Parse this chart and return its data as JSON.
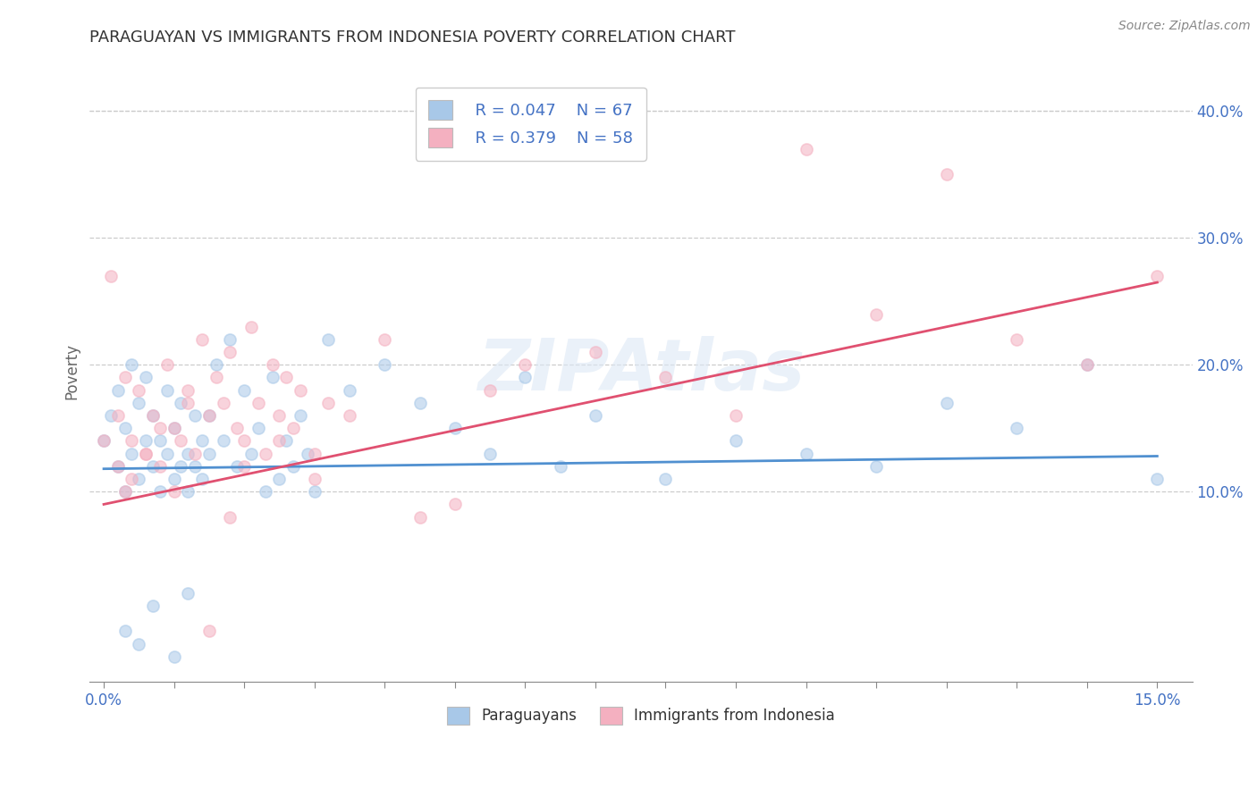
{
  "title": "PARAGUAYAN VS IMMIGRANTS FROM INDONESIA POVERTY CORRELATION CHART",
  "source": "Source: ZipAtlas.com",
  "xlabel_paraguayans": "Paraguayans",
  "xlabel_indonesia": "Immigrants from Indonesia",
  "ylabel": "Poverty",
  "xlim": [
    -0.002,
    0.155
  ],
  "ylim": [
    -0.05,
    0.44
  ],
  "xticks_minor": [
    0.0,
    0.01,
    0.02,
    0.03,
    0.04,
    0.05,
    0.06,
    0.07,
    0.08,
    0.09,
    0.1,
    0.11,
    0.12,
    0.13,
    0.14,
    0.15
  ],
  "xticks_labeled": [
    0.0,
    0.15
  ],
  "xticklabels_labeled": [
    "0.0%",
    "15.0%"
  ],
  "yticks_right": [
    0.1,
    0.2,
    0.3,
    0.4
  ],
  "yticklabels_right": [
    "10.0%",
    "20.0%",
    "30.0%",
    "40.0%"
  ],
  "r_blue": "R = 0.047",
  "n_blue": "N = 67",
  "r_pink": "R = 0.379",
  "n_pink": "N = 58",
  "color_blue": "#a8c8e8",
  "color_pink": "#f4b0c0",
  "color_blue_line": "#5090d0",
  "color_pink_line": "#e05070",
  "color_text": "#4472c4",
  "color_axis": "#888888",
  "watermark": "ZIPAtlas",
  "background_color": "#ffffff",
  "grid_color": "#cccccc",
  "blue_scatter_x": [
    0.0,
    0.001,
    0.002,
    0.002,
    0.003,
    0.003,
    0.004,
    0.004,
    0.005,
    0.005,
    0.006,
    0.006,
    0.007,
    0.007,
    0.008,
    0.008,
    0.009,
    0.009,
    0.01,
    0.01,
    0.011,
    0.011,
    0.012,
    0.012,
    0.013,
    0.013,
    0.014,
    0.014,
    0.015,
    0.015,
    0.016,
    0.017,
    0.018,
    0.019,
    0.02,
    0.021,
    0.022,
    0.023,
    0.024,
    0.025,
    0.026,
    0.027,
    0.028,
    0.029,
    0.03,
    0.032,
    0.035,
    0.04,
    0.045,
    0.05,
    0.055,
    0.06,
    0.065,
    0.07,
    0.08,
    0.09,
    0.1,
    0.11,
    0.12,
    0.13,
    0.14,
    0.15,
    0.003,
    0.005,
    0.007,
    0.01,
    0.012
  ],
  "blue_scatter_y": [
    0.14,
    0.16,
    0.12,
    0.18,
    0.1,
    0.15,
    0.13,
    0.2,
    0.11,
    0.17,
    0.14,
    0.19,
    0.12,
    0.16,
    0.1,
    0.14,
    0.13,
    0.18,
    0.11,
    0.15,
    0.12,
    0.17,
    0.1,
    0.13,
    0.16,
    0.12,
    0.14,
    0.11,
    0.13,
    0.16,
    0.2,
    0.14,
    0.22,
    0.12,
    0.18,
    0.13,
    0.15,
    0.1,
    0.19,
    0.11,
    0.14,
    0.12,
    0.16,
    0.13,
    0.1,
    0.22,
    0.18,
    0.2,
    0.17,
    0.15,
    0.13,
    0.19,
    0.12,
    0.16,
    0.11,
    0.14,
    0.13,
    0.12,
    0.17,
    0.15,
    0.2,
    0.11,
    -0.01,
    -0.02,
    0.01,
    -0.03,
    0.02
  ],
  "pink_scatter_x": [
    0.0,
    0.001,
    0.002,
    0.002,
    0.003,
    0.003,
    0.004,
    0.005,
    0.006,
    0.007,
    0.008,
    0.009,
    0.01,
    0.011,
    0.012,
    0.013,
    0.014,
    0.015,
    0.016,
    0.017,
    0.018,
    0.019,
    0.02,
    0.021,
    0.022,
    0.023,
    0.024,
    0.025,
    0.026,
    0.027,
    0.028,
    0.03,
    0.032,
    0.035,
    0.04,
    0.045,
    0.05,
    0.055,
    0.06,
    0.07,
    0.08,
    0.09,
    0.1,
    0.11,
    0.12,
    0.13,
    0.14,
    0.15,
    0.004,
    0.006,
    0.008,
    0.01,
    0.012,
    0.015,
    0.018,
    0.02,
    0.025,
    0.03
  ],
  "pink_scatter_y": [
    0.14,
    0.27,
    0.12,
    0.16,
    0.1,
    0.19,
    0.14,
    0.18,
    0.13,
    0.16,
    0.12,
    0.2,
    0.15,
    0.14,
    0.18,
    0.13,
    0.22,
    0.16,
    0.19,
    0.17,
    0.21,
    0.15,
    0.14,
    0.23,
    0.17,
    0.13,
    0.2,
    0.16,
    0.19,
    0.15,
    0.18,
    0.13,
    0.17,
    0.16,
    0.22,
    0.08,
    0.09,
    0.18,
    0.2,
    0.21,
    0.19,
    0.16,
    0.37,
    0.24,
    0.35,
    0.22,
    0.2,
    0.27,
    0.11,
    0.13,
    0.15,
    0.1,
    0.17,
    -0.01,
    0.08,
    0.12,
    0.14,
    0.11
  ],
  "blue_line_x": [
    0.0,
    0.15
  ],
  "blue_line_y": [
    0.118,
    0.128
  ],
  "pink_line_x": [
    0.0,
    0.15
  ],
  "pink_line_y": [
    0.09,
    0.265
  ]
}
